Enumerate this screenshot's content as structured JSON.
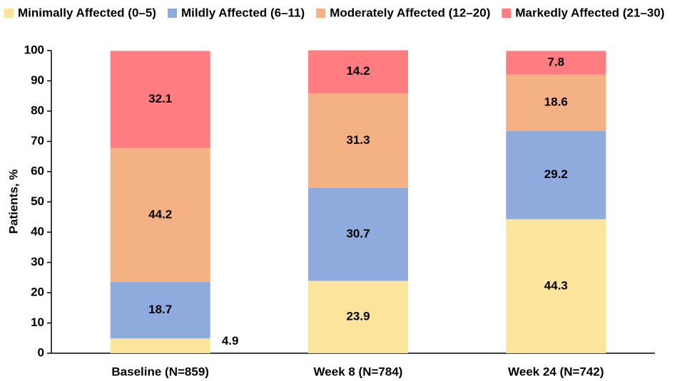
{
  "chart_data": {
    "type": "stacked_bar",
    "categories": [
      "Baseline (N=859)",
      "Week 8 (N=784)",
      "Week 24 (N=742)"
    ],
    "series": [
      {
        "name": "Minimally Affected (0–5)",
        "color": "#FDE49C",
        "values": [
          4.9,
          23.9,
          44.3
        ]
      },
      {
        "name": "Mildly Affected (6–11)",
        "color": "#8FAADC",
        "values": [
          18.7,
          30.7,
          29.2
        ]
      },
      {
        "name": "Moderately Affected (12–20)",
        "color": "#F4B183",
        "values": [
          44.2,
          31.3,
          18.6
        ]
      },
      {
        "name": "Markedly Affected (21–30)",
        "color": "#FF7C80",
        "values": [
          32.1,
          14.2,
          7.8
        ]
      }
    ],
    "y_label": "Patients, %",
    "ylim": [
      0,
      100
    ],
    "yticks": [
      0,
      10,
      20,
      30,
      40,
      50,
      60,
      70,
      80,
      90,
      100
    ],
    "grid": false,
    "legend": "top"
  }
}
